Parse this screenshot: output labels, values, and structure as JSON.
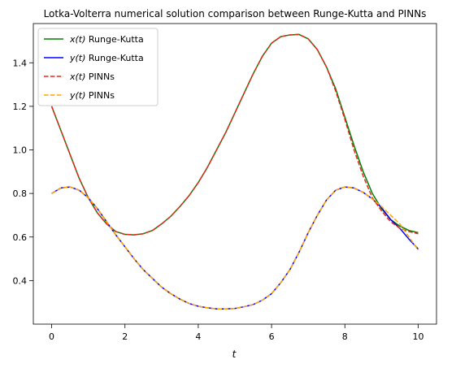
{
  "chart_data": {
    "type": "line",
    "title": "Lotka-Volterra numerical solution comparison between Runge-Kutta and PINNs",
    "xlabel": "t",
    "ylabel": "",
    "xlim": [
      -0.5,
      10.5
    ],
    "ylim": [
      0.2,
      1.58
    ],
    "xticks": [
      0,
      2,
      4,
      6,
      8,
      10
    ],
    "yticks": [
      0.4,
      0.6,
      0.8,
      1.0,
      1.2,
      1.4
    ],
    "xtick_labels": [
      "0",
      "2",
      "4",
      "6",
      "8",
      "10"
    ],
    "ytick_labels": [
      "0.4",
      "0.6",
      "0.8",
      "1.0",
      "1.2",
      "1.4"
    ],
    "grid": false,
    "legend_position": "top-left",
    "series": [
      {
        "name": "x(t) Runge-Kutta",
        "legend_var": "x(t)",
        "legend_method": "Runge-Kutta",
        "color": "#008000",
        "dash": "solid",
        "x": [
          0,
          0.25,
          0.5,
          0.75,
          1.0,
          1.25,
          1.5,
          1.75,
          2.0,
          2.25,
          2.5,
          2.75,
          3.0,
          3.25,
          3.5,
          3.75,
          4.0,
          4.25,
          4.5,
          4.75,
          5.0,
          5.25,
          5.5,
          5.75,
          6.0,
          6.25,
          6.5,
          6.75,
          7.0,
          7.25,
          7.5,
          7.75,
          8.0,
          8.25,
          8.5,
          8.75,
          9.0,
          9.25,
          9.5,
          9.75,
          10.0
        ],
        "y": [
          1.2,
          1.09,
          0.98,
          0.87,
          0.78,
          0.71,
          0.66,
          0.625,
          0.612,
          0.61,
          0.615,
          0.63,
          0.66,
          0.695,
          0.74,
          0.79,
          0.85,
          0.92,
          1.0,
          1.08,
          1.17,
          1.26,
          1.35,
          1.43,
          1.49,
          1.52,
          1.528,
          1.53,
          1.51,
          1.46,
          1.38,
          1.28,
          1.15,
          1.02,
          0.9,
          0.8,
          0.73,
          0.68,
          0.65,
          0.63,
          0.62
        ]
      },
      {
        "name": "y(t) Runge-Kutta",
        "legend_var": "y(t)",
        "legend_method": "Runge-Kutta",
        "color": "#0000ff",
        "dash": "solid",
        "x": [
          0,
          0.25,
          0.5,
          0.75,
          1.0,
          1.25,
          1.5,
          1.75,
          2.0,
          2.25,
          2.5,
          2.75,
          3.0,
          3.25,
          3.5,
          3.75,
          4.0,
          4.25,
          4.5,
          4.75,
          5.0,
          5.25,
          5.5,
          5.75,
          6.0,
          6.25,
          6.5,
          6.75,
          7.0,
          7.25,
          7.5,
          7.75,
          8.0,
          8.25,
          8.5,
          8.75,
          9.0,
          9.25,
          9.5,
          9.75,
          10.0
        ],
        "y": [
          0.8,
          0.825,
          0.83,
          0.815,
          0.78,
          0.73,
          0.67,
          0.61,
          0.555,
          0.5,
          0.45,
          0.41,
          0.37,
          0.34,
          0.315,
          0.295,
          0.282,
          0.275,
          0.27,
          0.27,
          0.272,
          0.28,
          0.29,
          0.31,
          0.34,
          0.39,
          0.45,
          0.53,
          0.62,
          0.7,
          0.77,
          0.815,
          0.83,
          0.825,
          0.805,
          0.775,
          0.735,
          0.68,
          0.64,
          0.59,
          0.545
        ]
      },
      {
        "name": "x(t) PINNs",
        "legend_var": "x(t)",
        "legend_method": "PINNs",
        "color": "#e8281e",
        "dash": "dashed",
        "x": [
          0,
          0.25,
          0.5,
          0.75,
          1.0,
          1.25,
          1.5,
          1.75,
          2.0,
          2.25,
          2.5,
          2.75,
          3.0,
          3.25,
          3.5,
          3.75,
          4.0,
          4.25,
          4.5,
          4.75,
          5.0,
          5.25,
          5.5,
          5.75,
          6.0,
          6.25,
          6.5,
          6.75,
          7.0,
          7.25,
          7.5,
          7.75,
          8.0,
          8.25,
          8.5,
          8.75,
          9.0,
          9.25,
          9.5,
          9.75,
          10.0
        ],
        "y": [
          1.2,
          1.09,
          0.98,
          0.87,
          0.78,
          0.71,
          0.66,
          0.625,
          0.612,
          0.61,
          0.615,
          0.63,
          0.66,
          0.695,
          0.74,
          0.79,
          0.85,
          0.92,
          1.0,
          1.08,
          1.17,
          1.26,
          1.35,
          1.43,
          1.49,
          1.52,
          1.528,
          1.53,
          1.51,
          1.46,
          1.38,
          1.27,
          1.14,
          1.0,
          0.88,
          0.78,
          0.72,
          0.67,
          0.64,
          0.625,
          0.615
        ]
      },
      {
        "name": "y(t) PINNs",
        "legend_var": "y(t)",
        "legend_method": "PINNs",
        "color": "#ffa500",
        "dash": "dashed",
        "x": [
          0,
          0.25,
          0.5,
          0.75,
          1.0,
          1.25,
          1.5,
          1.75,
          2.0,
          2.25,
          2.5,
          2.75,
          3.0,
          3.25,
          3.5,
          3.75,
          4.0,
          4.25,
          4.5,
          4.75,
          5.0,
          5.25,
          5.5,
          5.75,
          6.0,
          6.25,
          6.5,
          6.75,
          7.0,
          7.25,
          7.5,
          7.75,
          8.0,
          8.25,
          8.5,
          8.75,
          9.0,
          9.25,
          9.5,
          9.75,
          10.0
        ],
        "y": [
          0.8,
          0.825,
          0.83,
          0.815,
          0.78,
          0.73,
          0.67,
          0.61,
          0.555,
          0.5,
          0.45,
          0.41,
          0.37,
          0.34,
          0.315,
          0.295,
          0.282,
          0.275,
          0.27,
          0.27,
          0.272,
          0.28,
          0.29,
          0.31,
          0.34,
          0.39,
          0.45,
          0.53,
          0.62,
          0.7,
          0.77,
          0.815,
          0.83,
          0.825,
          0.805,
          0.775,
          0.74,
          0.7,
          0.66,
          0.6,
          0.54
        ]
      }
    ]
  }
}
